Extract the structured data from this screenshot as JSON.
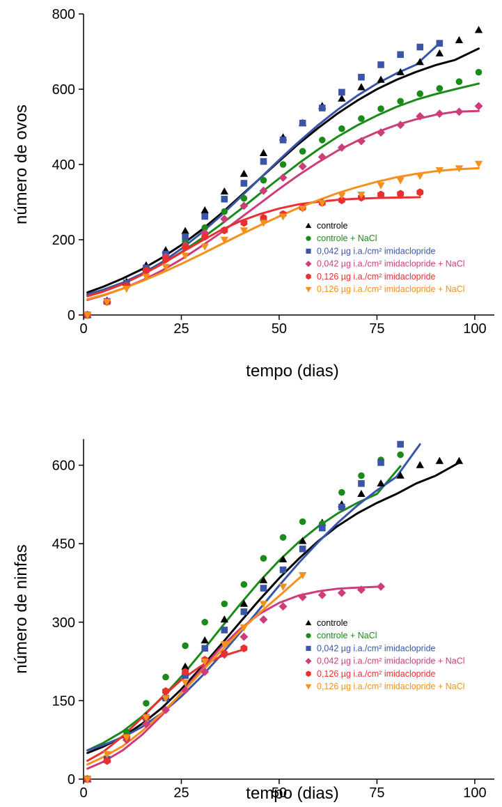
{
  "chart_data": [
    {
      "type": "scatter",
      "xlabel": "tempo (dias)",
      "ylabel": "número de ovos",
      "xlim": [
        0,
        105
      ],
      "ylim": [
        0,
        800
      ],
      "xticks": [
        0,
        25,
        50,
        75,
        100
      ],
      "yticks": [
        0,
        200,
        400,
        600,
        800
      ],
      "legend_position": "bottom-right",
      "series": [
        {
          "name": "controle",
          "color": "#000000",
          "marker": "triangle-up",
          "x": [
            1,
            6,
            11,
            16,
            21,
            26,
            31,
            36,
            41,
            46,
            51,
            56,
            61,
            66,
            71,
            76,
            81,
            86,
            91,
            96,
            101
          ],
          "y": [
            0,
            38,
            88,
            132,
            172,
            223,
            278,
            328,
            375,
            430,
            472,
            510,
            555,
            575,
            605,
            625,
            645,
            672,
            695,
            730,
            757
          ],
          "fit_x": [
            1,
            5,
            10,
            15,
            20,
            25,
            30,
            35,
            40,
            45,
            50,
            55,
            60,
            65,
            70,
            75,
            80,
            85,
            90,
            95,
            101
          ],
          "fit_y": [
            60,
            75,
            97,
            122,
            152,
            186,
            225,
            268,
            315,
            362,
            409,
            455,
            497,
            536,
            570,
            600,
            625,
            646,
            664,
            678,
            708
          ]
        },
        {
          "name": "controle + NaCl",
          "color": "#1a8a1a",
          "marker": "circle",
          "x": [
            1,
            6,
            11,
            16,
            21,
            26,
            31,
            36,
            41,
            46,
            51,
            56,
            61,
            66,
            71,
            76,
            81,
            86,
            91,
            96,
            101
          ],
          "y": [
            0,
            35,
            80,
            120,
            158,
            195,
            232,
            275,
            310,
            358,
            400,
            435,
            465,
            495,
            522,
            548,
            568,
            588,
            602,
            620,
            645
          ],
          "fit_x": [
            1,
            5,
            10,
            15,
            20,
            25,
            30,
            35,
            40,
            45,
            50,
            55,
            60,
            65,
            70,
            75,
            80,
            85,
            90,
            95,
            101
          ],
          "fit_y": [
            52,
            65,
            85,
            108,
            136,
            167,
            202,
            240,
            280,
            322,
            363,
            403,
            440,
            474,
            504,
            530,
            553,
            572,
            587,
            600,
            615
          ]
        },
        {
          "name": "0,042 µg i.a./cm² imidaclopride",
          "color": "#3a55a8",
          "marker": "square",
          "x": [
            1,
            6,
            11,
            16,
            21,
            26,
            31,
            36,
            41,
            46,
            51,
            56,
            61,
            66,
            71,
            76,
            81,
            86,
            91
          ],
          "y": [
            0,
            36,
            85,
            125,
            162,
            208,
            262,
            308,
            350,
            408,
            465,
            510,
            550,
            592,
            632,
            665,
            692,
            712,
            722
          ],
          "fit_x": [
            1,
            5,
            10,
            15,
            20,
            25,
            30,
            35,
            40,
            45,
            50,
            55,
            60,
            65,
            70,
            75,
            80,
            85,
            91
          ],
          "fit_y": [
            55,
            67,
            86,
            110,
            140,
            176,
            217,
            263,
            312,
            362,
            412,
            460,
            505,
            546,
            583,
            615,
            642,
            665,
            722
          ]
        },
        {
          "name": "0,042 µg i.a./cm² imidaclopride + NaCl",
          "color": "#cc3d7a",
          "marker": "diamond",
          "x": [
            1,
            6,
            11,
            16,
            21,
            26,
            31,
            36,
            41,
            46,
            51,
            56,
            61,
            66,
            71,
            76,
            81,
            86,
            91,
            96,
            101
          ],
          "y": [
            0,
            35,
            78,
            118,
            155,
            185,
            218,
            255,
            290,
            330,
            365,
            395,
            420,
            445,
            462,
            485,
            505,
            528,
            535,
            540,
            555
          ],
          "fit_x": [
            1,
            5,
            10,
            15,
            20,
            25,
            30,
            35,
            40,
            45,
            50,
            55,
            60,
            65,
            70,
            75,
            80,
            85,
            90,
            95,
            101
          ],
          "fit_y": [
            40,
            52,
            70,
            92,
            118,
            148,
            182,
            218,
            257,
            296,
            335,
            372,
            406,
            437,
            463,
            486,
            505,
            520,
            532,
            540,
            542
          ]
        },
        {
          "name": "0,126 µg i.a./cm² imidaclopride",
          "color": "#e83030",
          "marker": "hexagon",
          "x": [
            1,
            6,
            11,
            16,
            21,
            26,
            31,
            36,
            41,
            46,
            51,
            56,
            61,
            66,
            71,
            76,
            81,
            86
          ],
          "y": [
            0,
            35,
            78,
            118,
            148,
            180,
            208,
            225,
            245,
            258,
            268,
            285,
            298,
            305,
            312,
            320,
            322,
            326
          ],
          "fit_x": [
            1,
            5,
            10,
            15,
            20,
            25,
            30,
            35,
            40,
            45,
            50,
            55,
            60,
            65,
            70,
            75,
            80,
            86
          ],
          "fit_y": [
            50,
            62,
            82,
            107,
            135,
            166,
            196,
            225,
            249,
            268,
            283,
            294,
            301,
            306,
            309,
            311,
            312,
            313
          ]
        },
        {
          "name": "0,126 µg i.a./cm² imidaclopride + NaCl",
          "color": "#f5901e",
          "marker": "triangle-down",
          "x": [
            1,
            6,
            11,
            16,
            21,
            26,
            31,
            36,
            41,
            46,
            51,
            56,
            61,
            66,
            71,
            76,
            81,
            86,
            91,
            96,
            101
          ],
          "y": [
            0,
            35,
            70,
            102,
            128,
            158,
            182,
            200,
            225,
            245,
            262,
            283,
            298,
            318,
            320,
            345,
            358,
            370,
            385,
            390,
            402
          ],
          "fit_x": [
            1,
            5,
            10,
            15,
            20,
            25,
            30,
            35,
            40,
            45,
            50,
            55,
            60,
            65,
            70,
            75,
            80,
            85,
            90,
            95,
            101
          ],
          "fit_y": [
            42,
            53,
            70,
            90,
            112,
            136,
            161,
            187,
            213,
            238,
            262,
            285,
            305,
            324,
            340,
            354,
            366,
            375,
            382,
            387,
            390
          ]
        }
      ]
    },
    {
      "type": "scatter",
      "xlabel": "tempo (dias)",
      "ylabel": "número de ninfas",
      "xlim": [
        0,
        105
      ],
      "ylim": [
        0,
        650
      ],
      "xticks": [
        0,
        25,
        50,
        75,
        100
      ],
      "yticks": [
        0,
        150,
        300,
        450,
        600
      ],
      "legend_position": "bottom-right",
      "series": [
        {
          "name": "controle",
          "color": "#000000",
          "marker": "triangle-up",
          "x": [
            1,
            6,
            11,
            16,
            21,
            26,
            31,
            36,
            41,
            46,
            51,
            56,
            61,
            66,
            71,
            76,
            81,
            86,
            91,
            96
          ],
          "y": [
            0,
            38,
            85,
            120,
            158,
            215,
            265,
            305,
            335,
            380,
            420,
            455,
            490,
            525,
            545,
            565,
            580,
            600,
            608,
            608
          ],
          "fit_x": [
            1,
            5,
            10,
            15,
            20,
            25,
            30,
            35,
            40,
            45,
            50,
            55,
            60,
            65,
            70,
            75,
            80,
            85,
            90,
            96
          ],
          "fit_y": [
            50,
            62,
            81,
            106,
            136,
            172,
            213,
            256,
            300,
            343,
            384,
            421,
            455,
            484,
            508,
            528,
            545,
            565,
            580,
            605
          ]
        },
        {
          "name": "controle + NaCl",
          "color": "#1a8a1a",
          "marker": "circle",
          "x": [
            1,
            6,
            11,
            16,
            21,
            26,
            31,
            36,
            41,
            46,
            51,
            56,
            61,
            66,
            71,
            76,
            81
          ],
          "y": [
            0,
            38,
            90,
            145,
            195,
            255,
            300,
            335,
            372,
            422,
            462,
            492,
            488,
            548,
            580,
            610,
            620
          ],
          "fit_x": [
            1,
            5,
            10,
            15,
            20,
            25,
            30,
            35,
            40,
            45,
            50,
            55,
            60,
            65,
            70,
            75,
            81
          ],
          "fit_y": [
            55,
            69,
            91,
            120,
            155,
            196,
            241,
            288,
            334,
            378,
            418,
            453,
            483,
            508,
            528,
            545,
            598
          ]
        },
        {
          "name": "0,042 µg i.a./cm² imidaclopride",
          "color": "#3a55a8",
          "marker": "square",
          "x": [
            1,
            6,
            11,
            16,
            21,
            26,
            31,
            36,
            41,
            46,
            51,
            56,
            61,
            66,
            71,
            76,
            81
          ],
          "y": [
            0,
            38,
            80,
            118,
            155,
            198,
            250,
            285,
            320,
            365,
            400,
            440,
            480,
            520,
            565,
            605,
            640
          ],
          "fit_x": [
            1,
            5,
            10,
            15,
            20,
            25,
            30,
            35,
            40,
            45,
            50,
            55,
            60,
            65,
            70,
            75,
            80,
            86
          ],
          "fit_y": [
            55,
            65,
            80,
            100,
            126,
            158,
            195,
            236,
            280,
            325,
            370,
            413,
            453,
            490,
            523,
            552,
            578,
            640
          ]
        },
        {
          "name": "0,042 µg i.a./cm² imidaclopride + NaCl",
          "color": "#cc3d7a",
          "marker": "diamond",
          "x": [
            1,
            6,
            11,
            16,
            21,
            26,
            31,
            36,
            41,
            46,
            51,
            56,
            61,
            66,
            71,
            76
          ],
          "y": [
            0,
            35,
            75,
            105,
            132,
            170,
            205,
            238,
            272,
            305,
            330,
            348,
            352,
            356,
            362,
            368
          ],
          "fit_x": [
            1,
            5,
            10,
            15,
            20,
            25,
            30,
            35,
            40,
            45,
            50,
            55,
            60,
            65,
            70,
            76
          ],
          "fit_y": [
            20,
            33,
            55,
            85,
            122,
            165,
            209,
            251,
            287,
            316,
            337,
            351,
            359,
            364,
            366,
            368
          ]
        },
        {
          "name": "0,126 µg i.a./cm² imidaclopride",
          "color": "#e83030",
          "marker": "hexagon",
          "x": [
            1,
            6,
            11,
            16,
            21,
            26,
            31,
            36,
            41
          ],
          "y": [
            0,
            35,
            80,
            118,
            168,
            205,
            228,
            240,
            250
          ],
          "fit_x": [
            1,
            5,
            10,
            15,
            20,
            25,
            30,
            35,
            41
          ],
          "fit_y": [
            35,
            52,
            82,
            118,
            156,
            190,
            216,
            234,
            248
          ]
        },
        {
          "name": "0,126 µg i.a./cm² imidaclopride + NaCl",
          "color": "#f5901e",
          "marker": "triangle-down",
          "x": [
            1,
            6,
            11,
            16,
            21,
            26,
            31,
            36,
            41,
            46,
            51,
            56
          ],
          "y": [
            0,
            48,
            80,
            118,
            155,
            185,
            225,
            258,
            290,
            335,
            368,
            390
          ],
          "fit_x": [
            1,
            5,
            10,
            15,
            20,
            25,
            30,
            35,
            40,
            45,
            50,
            56
          ],
          "fit_y": [
            28,
            42,
            63,
            92,
            126,
            164,
            204,
            244,
            283,
            318,
            350,
            390
          ]
        }
      ]
    }
  ]
}
